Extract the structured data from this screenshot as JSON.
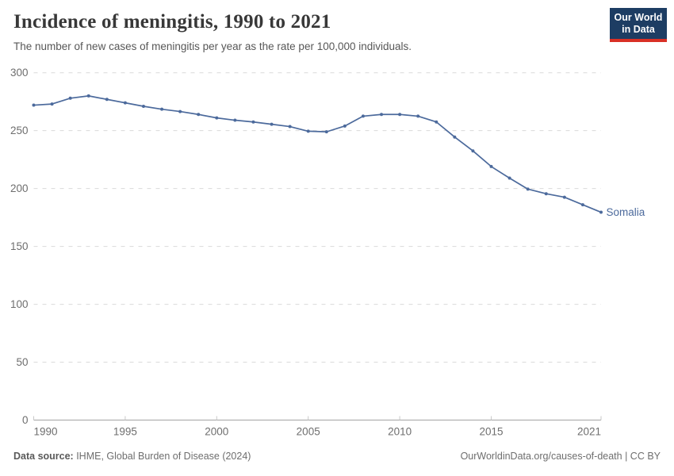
{
  "header": {
    "title": "Incidence of meningitis, 1990 to 2021",
    "subtitle": "The number of new cases of meningitis per year as the rate per 100,000 individuals.",
    "logo": {
      "line1": "Our World",
      "line2": "in Data"
    }
  },
  "chart_data": {
    "type": "line",
    "title": "Incidence of meningitis, 1990 to 2021",
    "xlabel": "",
    "ylabel": "",
    "xlim": [
      1990,
      2021
    ],
    "ylim": [
      0,
      300
    ],
    "x_ticks": [
      1990,
      1995,
      2000,
      2005,
      2010,
      2015,
      2021
    ],
    "y_ticks": [
      0,
      50,
      100,
      150,
      200,
      250,
      300
    ],
    "grid": "horizontal-dashed",
    "legend": "end-of-line-label",
    "series": [
      {
        "name": "Somalia",
        "color": "#4c6a9c",
        "x": [
          1990,
          1991,
          1992,
          1993,
          1994,
          1995,
          1996,
          1997,
          1998,
          1999,
          2000,
          2001,
          2002,
          2003,
          2004,
          2005,
          2006,
          2007,
          2008,
          2009,
          2010,
          2011,
          2012,
          2013,
          2014,
          2015,
          2016,
          2017,
          2018,
          2019,
          2020,
          2021
        ],
        "values": [
          272,
          273,
          278,
          280,
          277,
          274,
          271,
          268.5,
          266.5,
          264,
          261,
          259,
          257.5,
          255.5,
          253.5,
          249.5,
          249,
          254,
          262.5,
          264,
          264,
          262.5,
          257.5,
          244.5,
          232.5,
          219,
          209,
          199.5,
          195.5,
          192.5,
          186,
          179.5
        ]
      }
    ]
  },
  "footer": {
    "source_label": "Data source:",
    "source_text": " IHME, Global Burden of Disease (2024)",
    "credit": "OurWorldinData.org/causes-of-death | CC BY"
  },
  "colors": {
    "line": "#4c6a9c",
    "logo_bg": "#1d3d63",
    "logo_bar": "#d93025",
    "grid": "#dadada",
    "axis": "#a3a3a3",
    "tick_text": "#6e6e6e"
  }
}
